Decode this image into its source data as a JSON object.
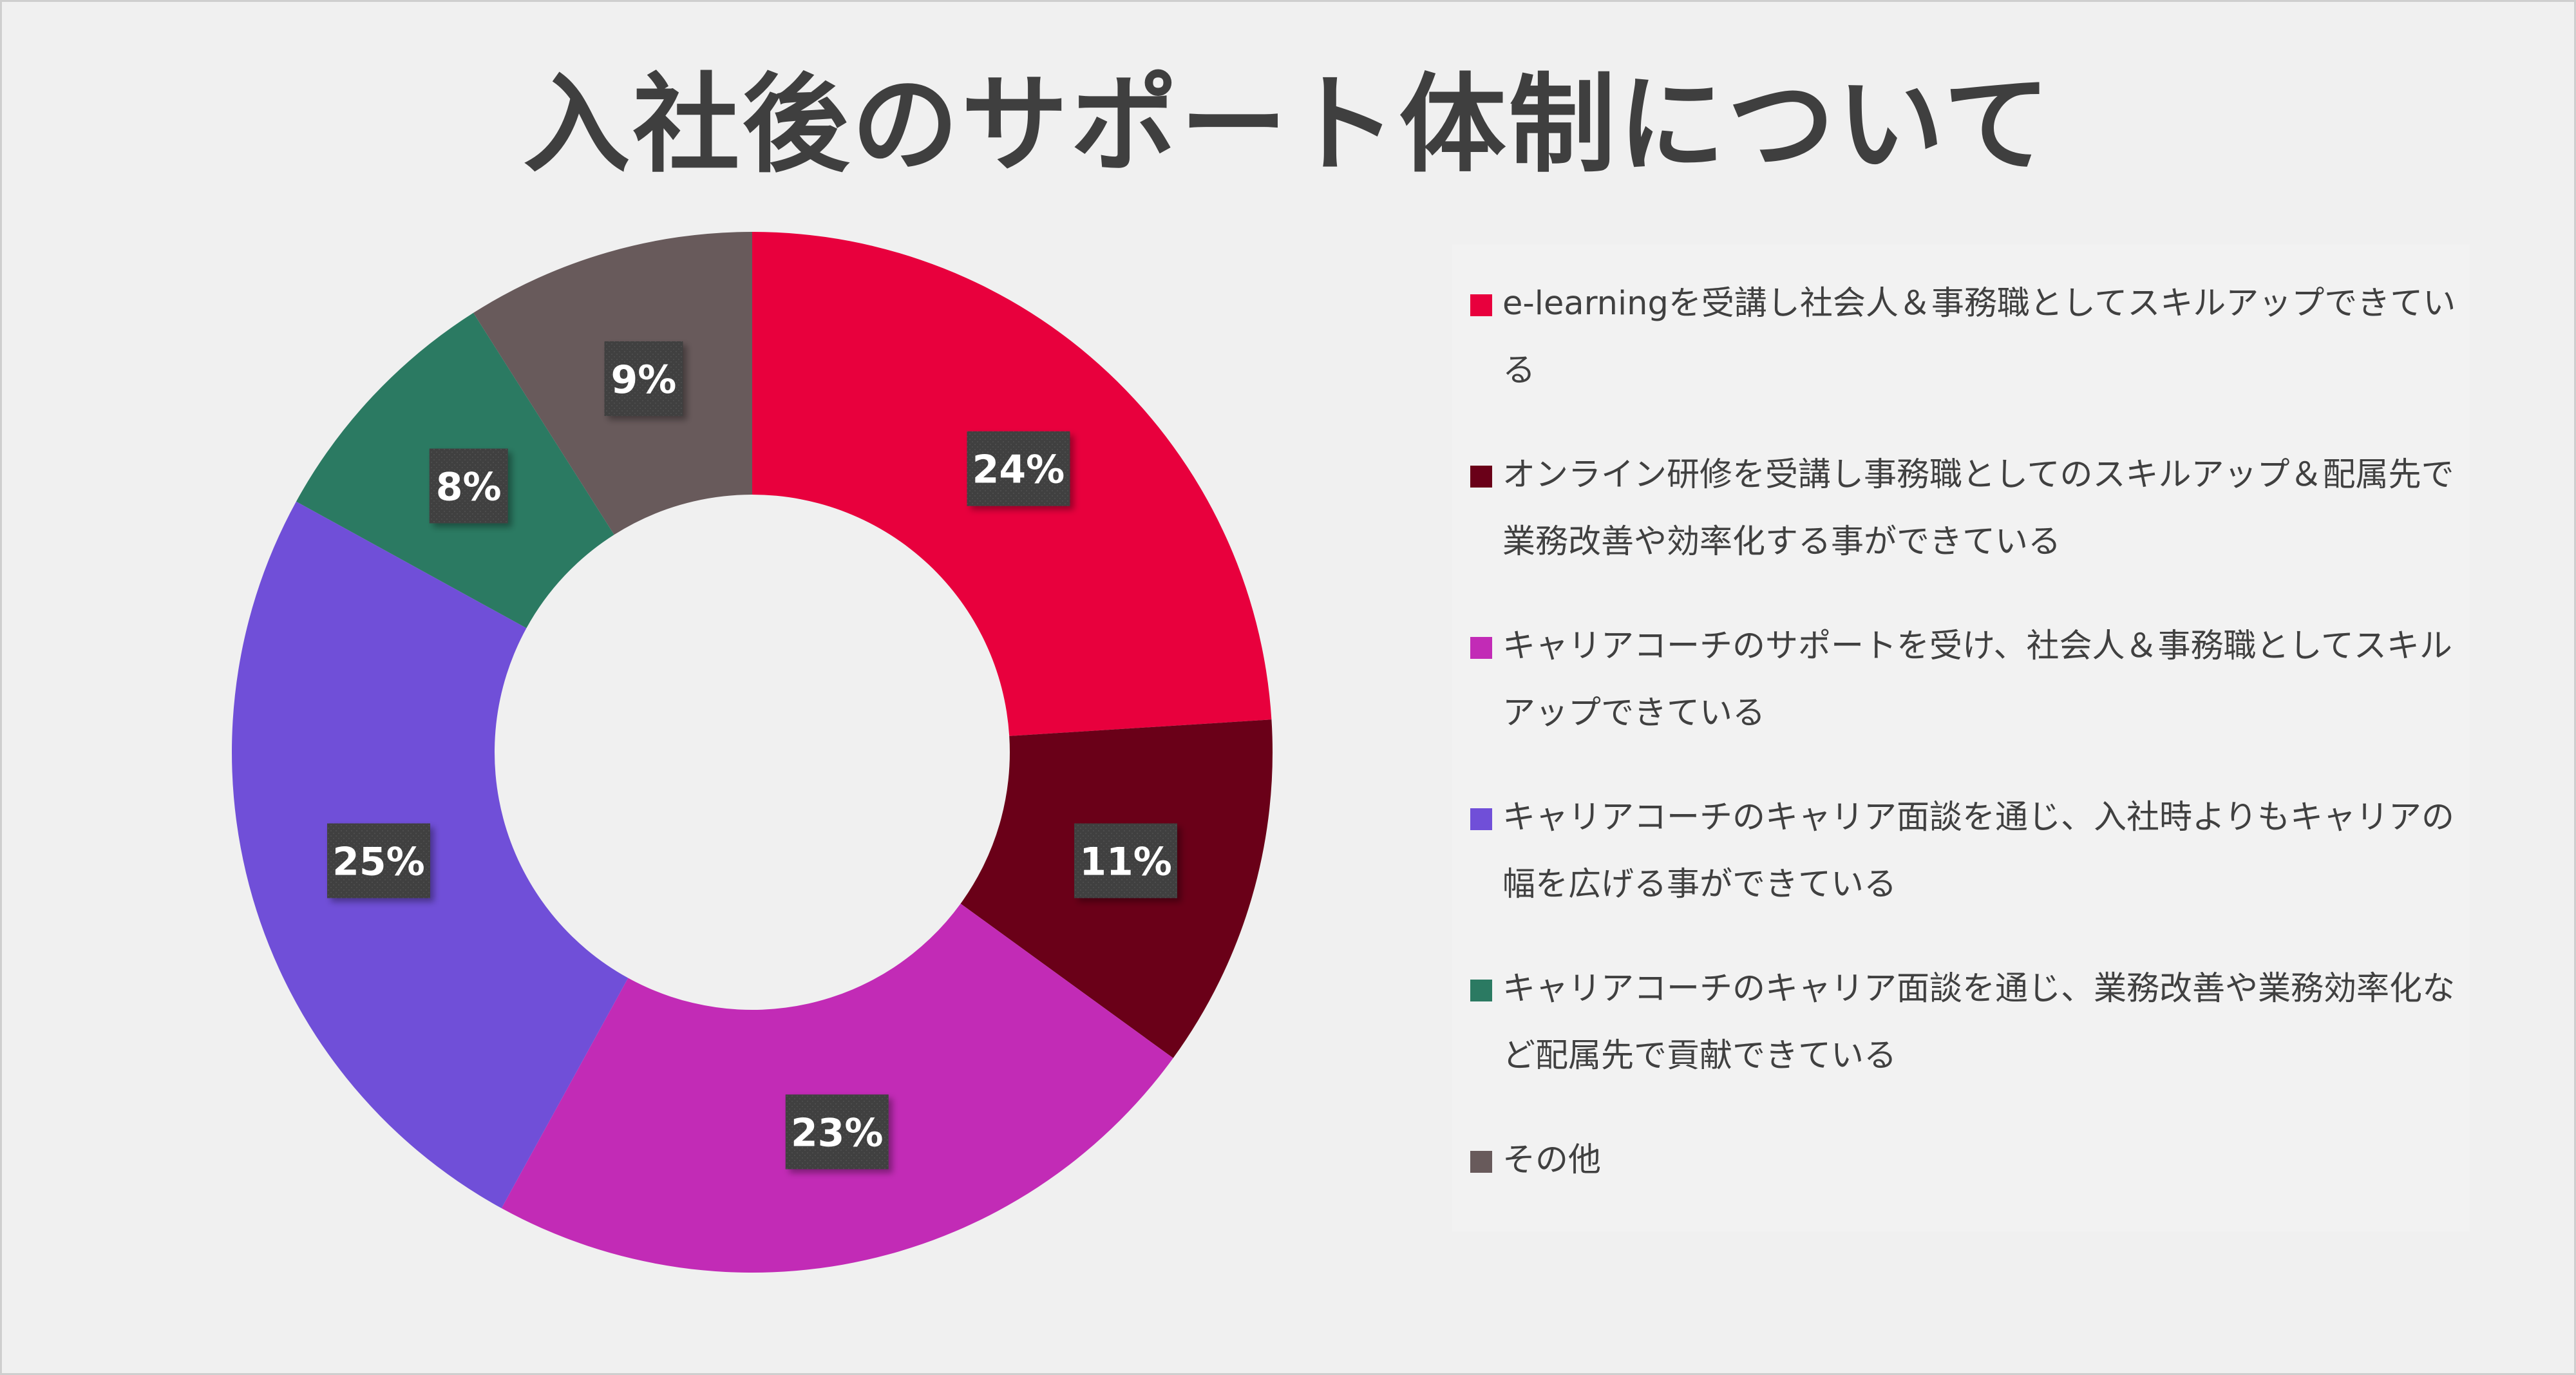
{
  "title": "入社後のサポート体制について",
  "chart_data": {
    "type": "pie",
    "title": "入社後のサポート体制について",
    "unit": "%",
    "legend_position": "right",
    "categories": [
      "e-learningを受講し社会人＆事務職としてスキルアップできている",
      "オンライン研修を受講し事務職としてのスキルアップ＆配属先で業務改善や効率化する事ができている",
      "キャリアコーチのサポートを受け、社会人＆事務職としてスキルアップできている",
      "キャリアコーチのキャリア面談を通じ、入社時よりもキャリアの幅を広げる事ができている",
      "キャリアコーチのキャリア面談を通じ、業務改善や業務効率化など配属先で貢献できている",
      "その他"
    ],
    "values": [
      24,
      11,
      23,
      25,
      8,
      9
    ],
    "labels": [
      "24%",
      "11%",
      "23%",
      "25%",
      "8%",
      "9%"
    ],
    "colors": [
      "#e8003d",
      "#6a0018",
      "#c22bb6",
      "#704fd8",
      "#2b7a62",
      "#685a5b"
    ]
  }
}
